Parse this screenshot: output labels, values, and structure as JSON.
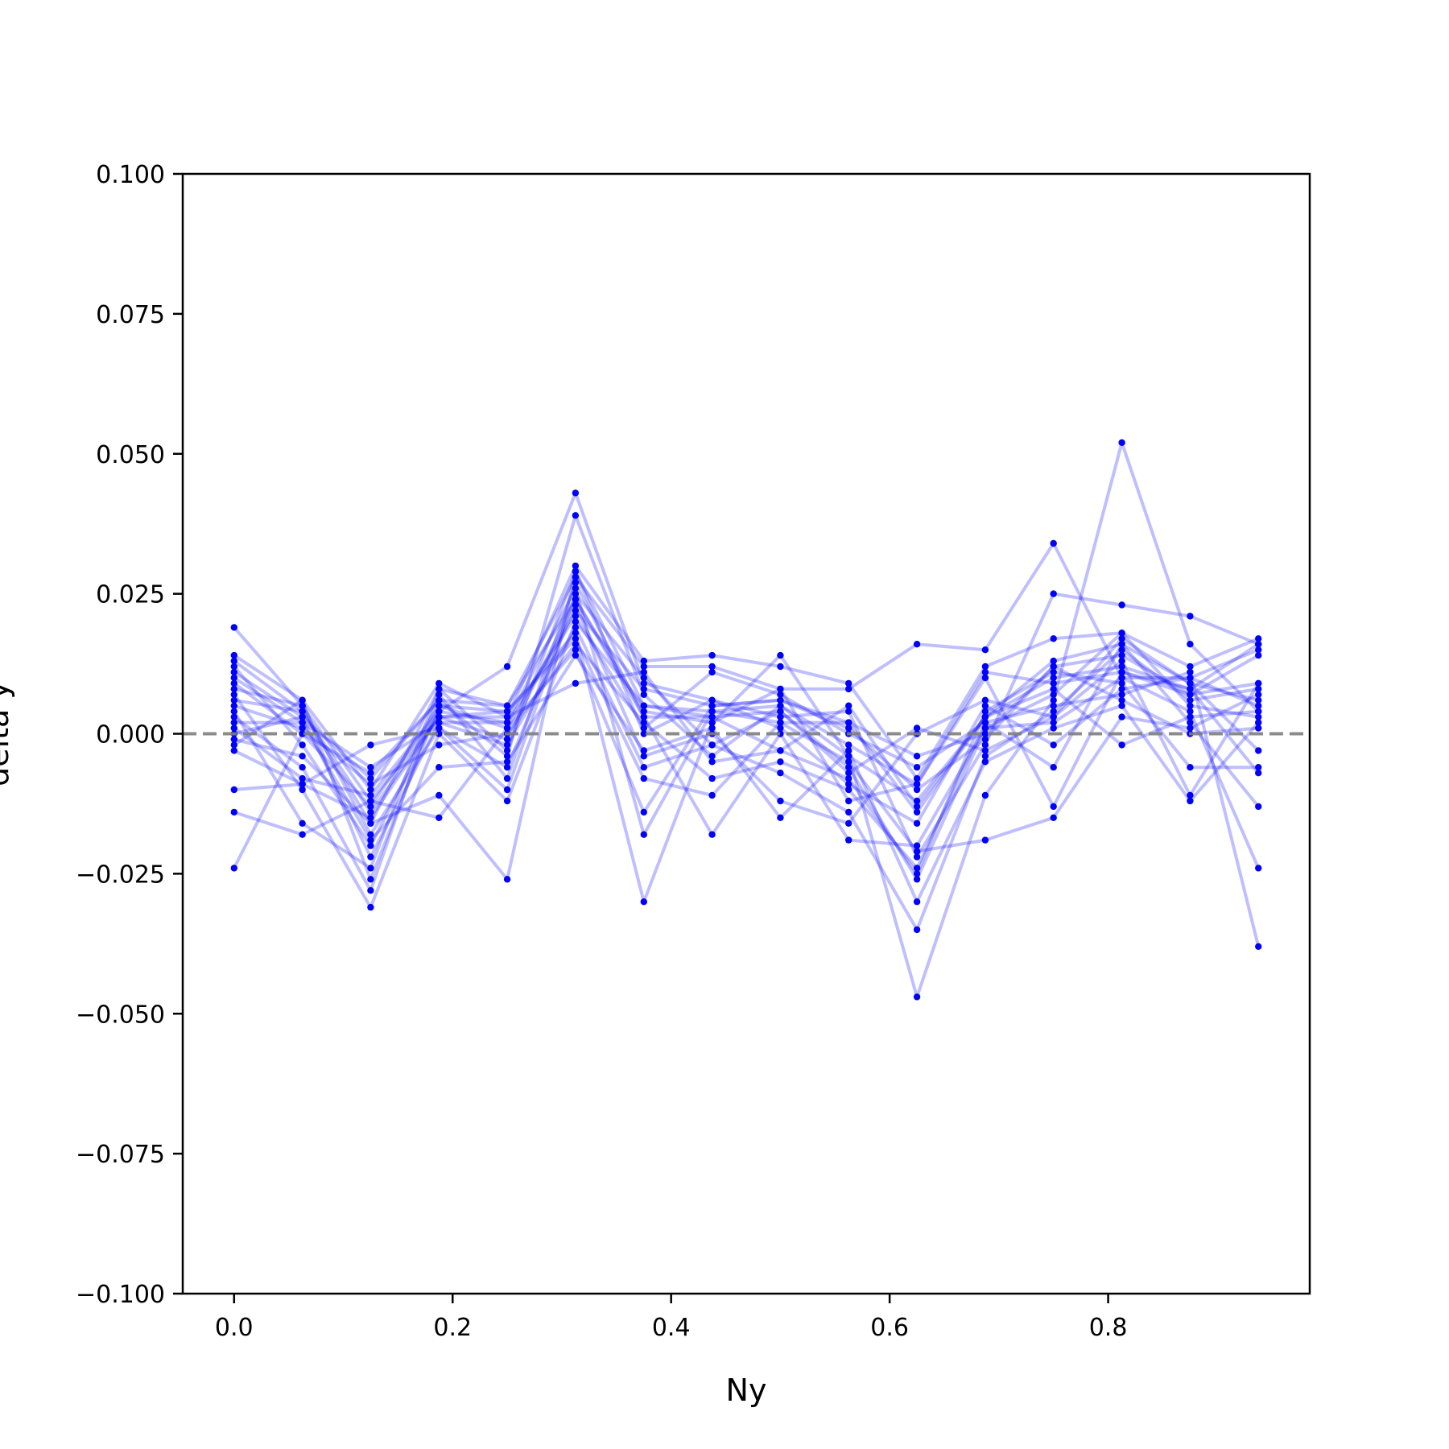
{
  "chart_data": {
    "type": "line",
    "title": "",
    "xlabel": "Ny",
    "ylabel": "delta y",
    "xlim": [
      -0.047,
      0.9845
    ],
    "ylim": [
      -0.1,
      0.1
    ],
    "xticks": [
      0.0,
      0.2,
      0.4,
      0.6,
      0.8
    ],
    "xtick_labels": [
      "0.0",
      "0.2",
      "0.4",
      "0.6",
      "0.8"
    ],
    "yticks": [
      -0.1,
      -0.075,
      -0.05,
      -0.025,
      0.0,
      0.025,
      0.05,
      0.075,
      0.1
    ],
    "ytick_labels": [
      "−0.100",
      "−0.075",
      "−0.050",
      "−0.025",
      "0.000",
      "0.025",
      "0.050",
      "0.075",
      "0.100"
    ],
    "grid": false,
    "reference_line": {
      "y": 0.0,
      "style": "dashed",
      "color": "#7f7f7f"
    },
    "series_color": "#0000ff",
    "line_alpha": 0.25,
    "x": [
      0.0,
      0.0625,
      0.125,
      0.1875,
      0.25,
      0.3125,
      0.375,
      0.4375,
      0.5,
      0.5625,
      0.625,
      0.6875,
      0.75,
      0.8125,
      0.875,
      0.9375
    ],
    "series": [
      {
        "values": [
          0.019,
          0.005,
          -0.012,
          0.003,
          -0.001,
          0.024,
          0.004,
          0.002,
          0.014,
          -0.004,
          -0.012,
          0.003,
          0.01,
          0.012,
          0.008,
          0.016
        ]
      },
      {
        "values": [
          0.014,
          0.006,
          -0.01,
          0.009,
          0.003,
          0.03,
          0.013,
          0.014,
          0.012,
          0.009,
          -0.008,
          0.012,
          0.017,
          0.018,
          0.012,
          0.017
        ]
      },
      {
        "values": [
          0.013,
          0.004,
          -0.016,
          0.008,
          0.005,
          0.028,
          0.012,
          0.012,
          0.008,
          0.008,
          0.016,
          0.015,
          0.034,
          0.01,
          0.01,
          0.015
        ]
      },
      {
        "values": [
          0.012,
          -0.002,
          -0.02,
          0.004,
          0.012,
          0.043,
          0.009,
          0.006,
          0.003,
          0.004,
          -0.022,
          -0.002,
          0.025,
          0.023,
          0.021,
          0.016
        ]
      },
      {
        "values": [
          0.011,
          0.003,
          -0.008,
          0.006,
          -0.004,
          0.039,
          0.007,
          -0.004,
          0.005,
          -0.004,
          -0.047,
          -0.011,
          0.006,
          0.052,
          0.016,
          0.004
        ]
      },
      {
        "values": [
          0.01,
          0.002,
          -0.006,
          0.002,
          0.002,
          0.026,
          -0.018,
          0.004,
          0.002,
          0.002,
          -0.004,
          0.0,
          0.012,
          0.014,
          0.007,
          0.009
        ]
      },
      {
        "values": [
          0.009,
          0.0,
          -0.013,
          0.005,
          0.001,
          0.022,
          0.008,
          0.005,
          0.006,
          0.002,
          -0.014,
          0.003,
          0.013,
          0.016,
          0.009,
          0.006
        ]
      },
      {
        "values": [
          0.008,
          0.005,
          -0.018,
          0.001,
          -0.01,
          0.025,
          0.01,
          -0.002,
          0.004,
          -0.006,
          -0.026,
          0.001,
          0.007,
          0.018,
          0.005,
          0.003
        ]
      },
      {
        "values": [
          0.007,
          -0.01,
          -0.031,
          0.0,
          -0.012,
          0.02,
          0.005,
          0.003,
          -0.003,
          -0.008,
          -0.025,
          0.004,
          0.011,
          0.009,
          -0.006,
          -0.006
        ]
      },
      {
        "values": [
          0.006,
          0.004,
          -0.014,
          0.003,
          0.004,
          0.018,
          -0.03,
          0.002,
          0.008,
          -0.012,
          -0.009,
          0.01,
          -0.013,
          0.011,
          0.008,
          -0.007
        ]
      },
      {
        "values": [
          0.005,
          0.001,
          -0.009,
          -0.002,
          0.0,
          0.016,
          0.002,
          -0.008,
          -0.005,
          -0.01,
          -0.024,
          0.002,
          0.005,
          0.007,
          0.011,
          -0.038
        ]
      },
      {
        "values": [
          0.003,
          -0.006,
          -0.028,
          0.007,
          -0.008,
          0.027,
          0.003,
          -0.018,
          0.0,
          -0.019,
          -0.02,
          0.001,
          0.002,
          0.01,
          0.004,
          -0.024
        ]
      },
      {
        "values": [
          0.002,
          0.002,
          -0.019,
          -0.006,
          -0.005,
          0.014,
          -0.003,
          0.001,
          -0.015,
          -0.003,
          -0.03,
          -0.005,
          0.001,
          0.005,
          -0.012,
          0.002
        ]
      },
      {
        "values": [
          0.001,
          -0.008,
          -0.011,
          0.004,
          0.002,
          0.021,
          0.001,
          0.011,
          0.007,
          0.0,
          -0.006,
          0.002,
          -0.006,
          0.016,
          0.002,
          -0.013
        ]
      },
      {
        "values": [
          0.0,
          0.003,
          -0.022,
          0.002,
          -0.002,
          0.019,
          -0.006,
          -0.002,
          -0.007,
          -0.014,
          -0.035,
          -0.004,
          0.004,
          0.015,
          0.006,
          0.008
        ]
      },
      {
        "values": [
          -0.001,
          -0.004,
          -0.016,
          -0.011,
          -0.026,
          0.029,
          0.0,
          0.006,
          0.001,
          -0.009,
          -0.016,
          0.005,
          -0.002,
          0.008,
          0.01,
          0.005
        ]
      },
      {
        "values": [
          -0.002,
          0.006,
          -0.026,
          0.005,
          0.004,
          0.017,
          -0.008,
          -0.011,
          0.002,
          -0.005,
          -0.021,
          -0.019,
          -0.015,
          0.003,
          0.001,
          0.007
        ]
      },
      {
        "values": [
          -0.003,
          -0.009,
          -0.002,
          0.001,
          -0.006,
          0.023,
          -0.004,
          0.0,
          -0.012,
          -0.016,
          0.0,
          0.006,
          0.003,
          0.017,
          0.009,
          -0.003
        ]
      },
      {
        "values": [
          -0.01,
          -0.009,
          -0.015,
          0.003,
          0.003,
          0.009,
          0.011,
          -0.005,
          -0.003,
          0.005,
          -0.013,
          0.003,
          0.008,
          -0.002,
          0.003,
          0.004
        ]
      },
      {
        "values": [
          -0.014,
          -0.018,
          -0.012,
          -0.015,
          0.001,
          0.015,
          -0.014,
          0.005,
          0.006,
          0.001,
          -0.01,
          -0.001,
          0.012,
          0.006,
          0.0,
          0.001
        ]
      },
      {
        "values": [
          -0.024,
          0.0,
          -0.007,
          0.006,
          0.005,
          0.024,
          0.003,
          0.003,
          0.004,
          -0.007,
          0.001,
          -0.003,
          0.003,
          0.013,
          -0.011,
          0.009
        ]
      },
      {
        "values": [
          0.004,
          -0.016,
          -0.024,
          0.008,
          -0.003,
          0.029,
          0.005,
          0.004,
          0.005,
          -0.002,
          -0.009,
          0.011,
          0.009,
          0.011,
          0.007,
          0.014
        ]
      }
    ]
  }
}
